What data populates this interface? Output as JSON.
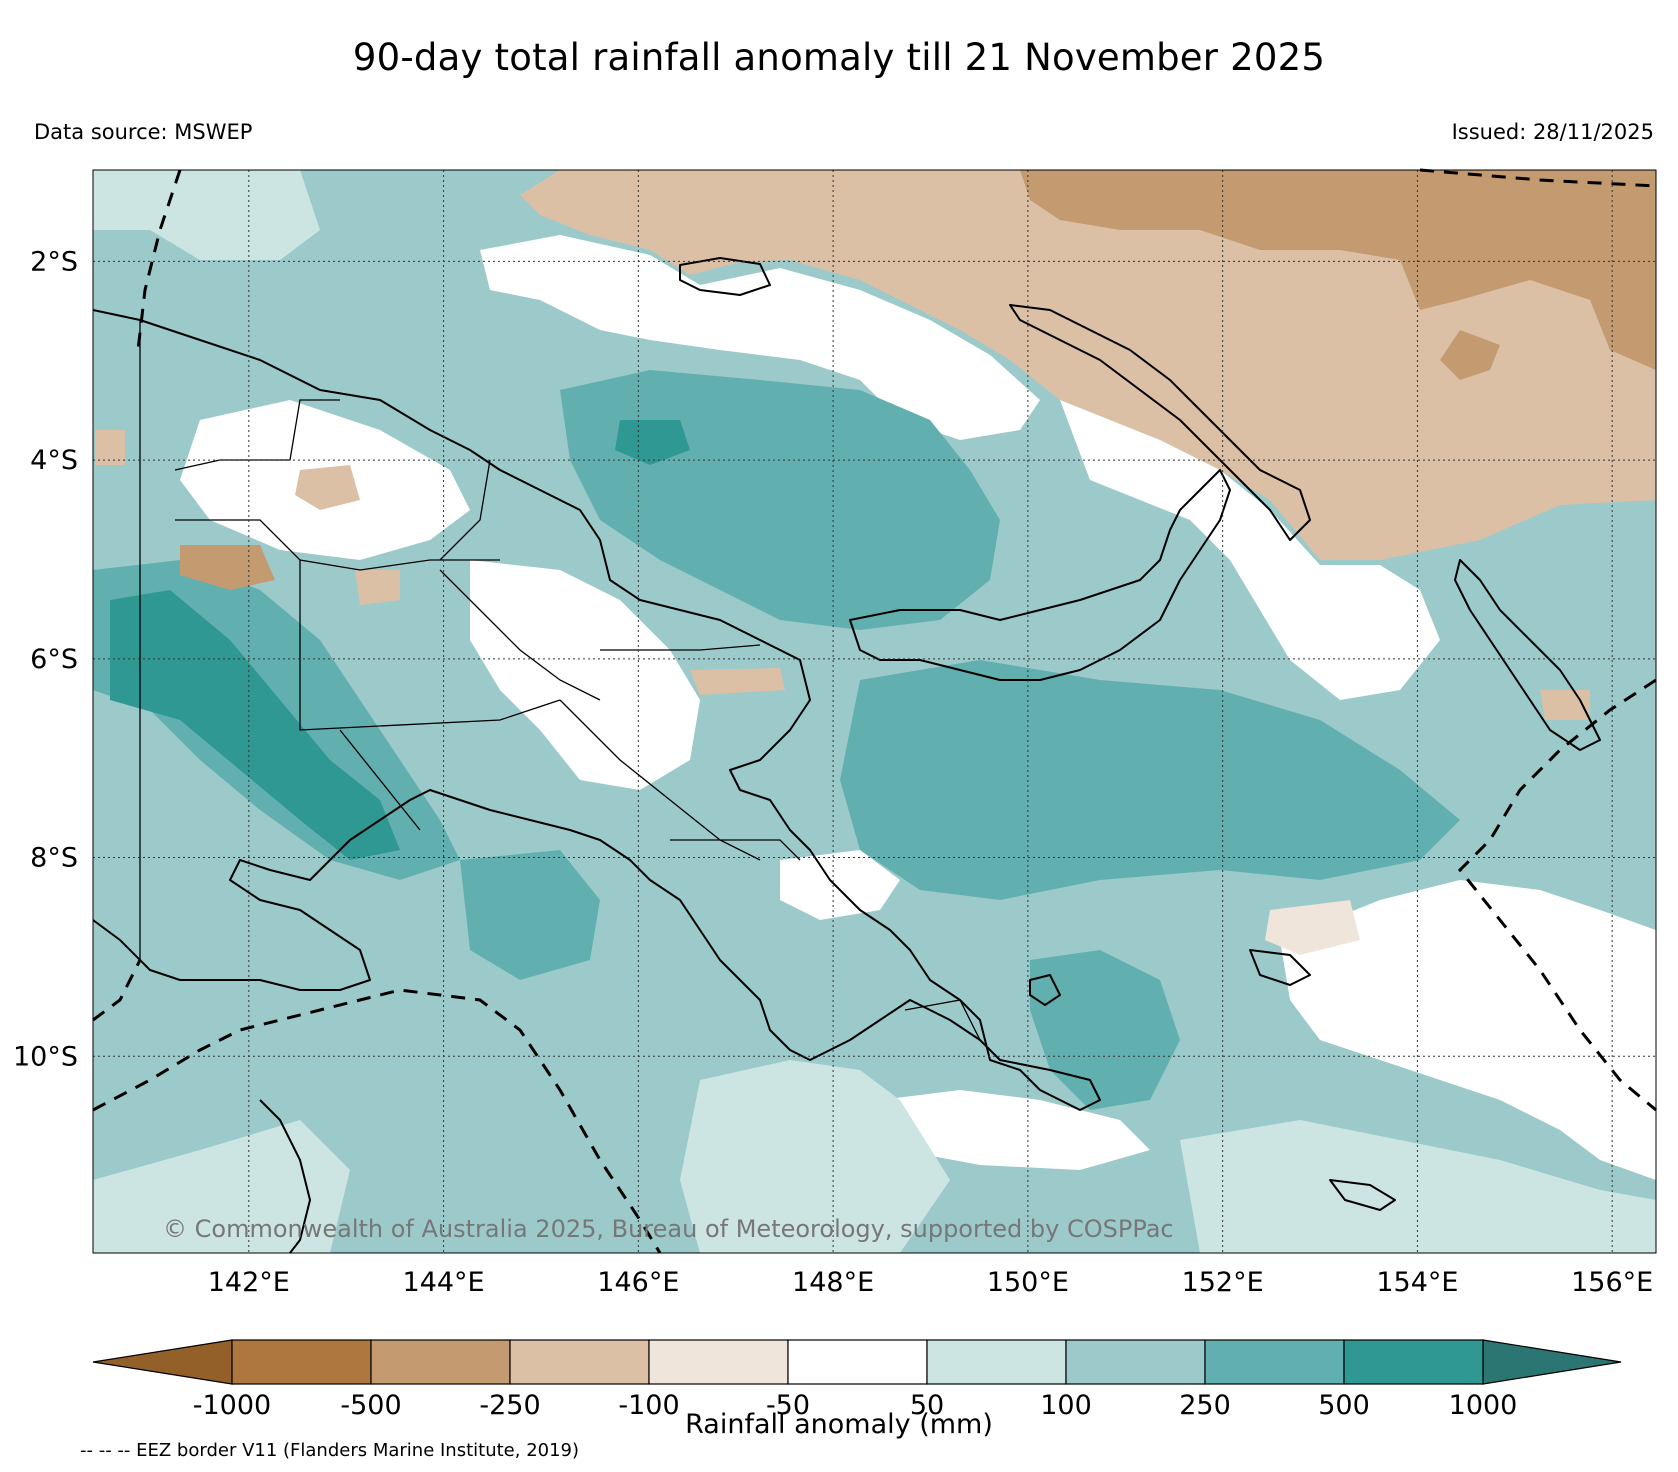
{
  "title": "90-day total rainfall anomaly till 21 November 2025",
  "data_source": "Data source: MSWEP",
  "issued": "Issued: 28/11/2025",
  "copyright": "© Commonwealth of Australia 2025, Bureau of Meteorology, supported by COSPPac",
  "map": {
    "lon_range": [
      140.4,
      156.45
    ],
    "lat_range": [
      -11.98,
      -1.08
    ],
    "lat_ticks": [
      {
        "value": -2,
        "label": "2°S"
      },
      {
        "value": -4,
        "label": "4°S"
      },
      {
        "value": -6,
        "label": "6°S"
      },
      {
        "value": -8,
        "label": "8°S"
      },
      {
        "value": -10,
        "label": "10°S"
      }
    ],
    "lon_ticks": [
      {
        "value": 142,
        "label": "142°E"
      },
      {
        "value": 144,
        "label": "144°E"
      },
      {
        "value": 146,
        "label": "146°E"
      },
      {
        "value": 148,
        "label": "148°E"
      },
      {
        "value": 150,
        "label": "150°E"
      },
      {
        "value": 152,
        "label": "152°E"
      },
      {
        "value": 154,
        "label": "154°E"
      },
      {
        "value": 156,
        "label": "156°E"
      }
    ],
    "grid": true
  },
  "colorbar": {
    "label": "Rainfall anomaly (mm)",
    "tick_labels": [
      "-1000",
      "-500",
      "-250",
      "-100",
      "-50",
      "50",
      "100",
      "250",
      "500",
      "1000"
    ],
    "colors": [
      "#93602a",
      "#ad773f",
      "#c49b70",
      "#dbc0a6",
      "#f0e5da",
      "#ffffff",
      "#cce5e3",
      "#9ccacb",
      "#62afb0",
      "#2f9893",
      "#2b7672"
    ],
    "extend": "both"
  },
  "footer": "-- -- -- EEZ border V11 (Flanders Marine Institute, 2019)"
}
